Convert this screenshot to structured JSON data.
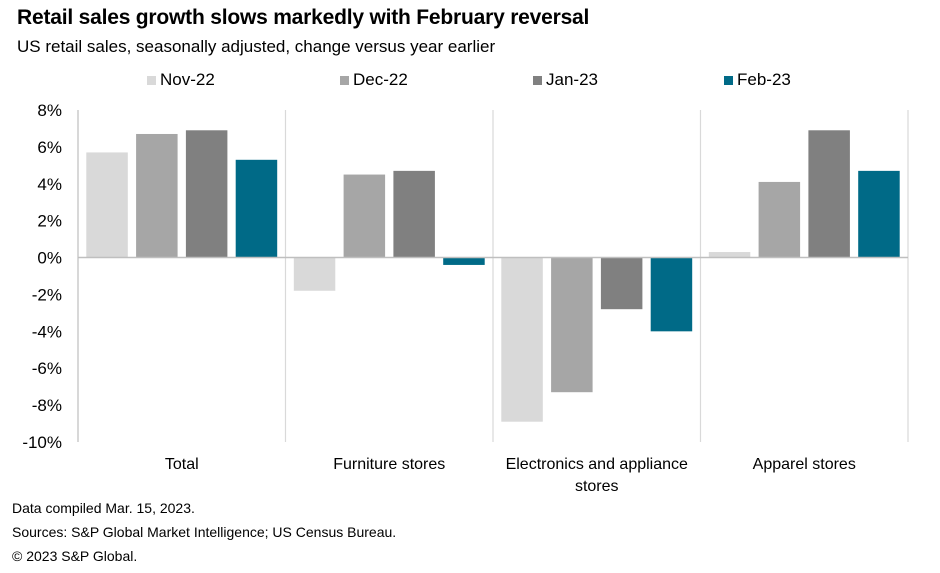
{
  "chart_data": {
    "type": "bar",
    "title": "Retail sales growth slows markedly with February reversal",
    "subtitle": "US retail sales, seasonally adjusted, change versus year earlier",
    "categories": [
      "Total",
      "Furniture stores",
      "Electronics and appliance stores",
      "Apparel stores"
    ],
    "category_lines": [
      [
        "Total"
      ],
      [
        "Furniture stores"
      ],
      [
        "Electronics and appliance",
        "stores"
      ],
      [
        "Apparel stores"
      ]
    ],
    "series": [
      {
        "name": "Nov-22",
        "color": "#d9d9d9",
        "values": [
          5.7,
          -1.8,
          -8.9,
          0.3
        ]
      },
      {
        "name": "Dec-22",
        "color": "#a6a6a6",
        "values": [
          6.7,
          4.5,
          -7.3,
          4.1
        ]
      },
      {
        "name": "Jan-23",
        "color": "#808080",
        "values": [
          6.9,
          4.7,
          -2.8,
          6.9
        ]
      },
      {
        "name": "Feb-23",
        "color": "#006a87",
        "values": [
          5.3,
          -0.4,
          -4.0,
          4.7
        ]
      }
    ],
    "xlabel": "",
    "ylabel": "",
    "ylim": [
      -10,
      8
    ],
    "yticks": [
      8,
      6,
      4,
      2,
      0,
      -2,
      -4,
      -6,
      -8,
      -10
    ],
    "ytick_labels": [
      "8%",
      "6%",
      "4%",
      "2%",
      "0%",
      "-2%",
      "-4%",
      "-6%",
      "-8%",
      "-10%"
    ],
    "legend_position": "top",
    "grid": false
  },
  "footer": {
    "note": "Data compiled Mar. 15, 2023.",
    "sources": "Sources: S&P Global Market Intelligence; US Census Bureau.",
    "copyright": "© 2023 S&P Global."
  }
}
